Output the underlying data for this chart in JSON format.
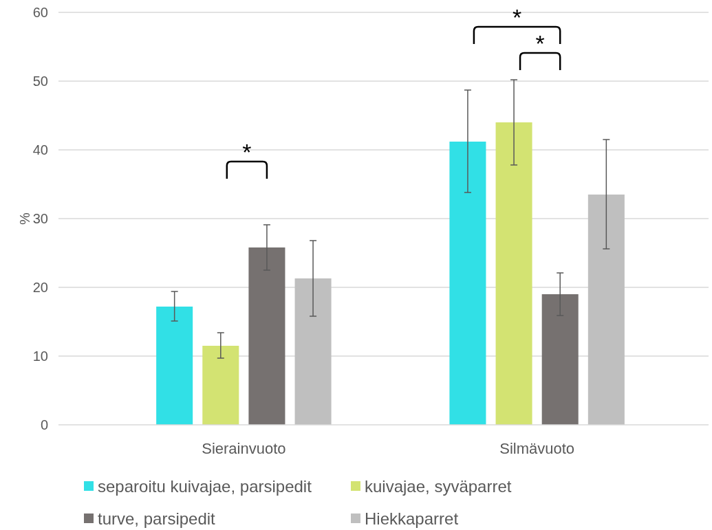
{
  "chart_data": {
    "type": "bar",
    "ylabel": "%",
    "categories": [
      "Sierainvuoto",
      "Silmävuoto"
    ],
    "series": [
      {
        "name": "separoitu kuivajae, parsipedit",
        "color": "#31e0e6",
        "values": [
          17.2,
          41.2
        ],
        "errors": [
          [
            15.1,
            19.4
          ],
          [
            33.8,
            48.7
          ]
        ]
      },
      {
        "name": "kuivajae, syväparret",
        "color": "#d3e372",
        "values": [
          11.5,
          44.0
        ],
        "errors": [
          [
            9.7,
            13.4
          ],
          [
            37.8,
            50.2
          ]
        ]
      },
      {
        "name": "turve, parsipedit",
        "color": "#767170",
        "values": [
          25.8,
          19.0
        ],
        "errors": [
          [
            22.5,
            29.1
          ],
          [
            15.9,
            22.1
          ]
        ]
      },
      {
        "name": "Hiekkaparret",
        "color": "#bfbfbf",
        "values": [
          21.3,
          33.5
        ],
        "errors": [
          [
            15.8,
            26.8
          ],
          [
            25.6,
            41.5
          ]
        ]
      }
    ],
    "ylim": [
      0,
      60
    ],
    "yticks": [
      0,
      10,
      20,
      30,
      40,
      50,
      60
    ],
    "grid": "y",
    "legend": "bottom",
    "annotations": [
      "*",
      "*",
      "*"
    ]
  }
}
